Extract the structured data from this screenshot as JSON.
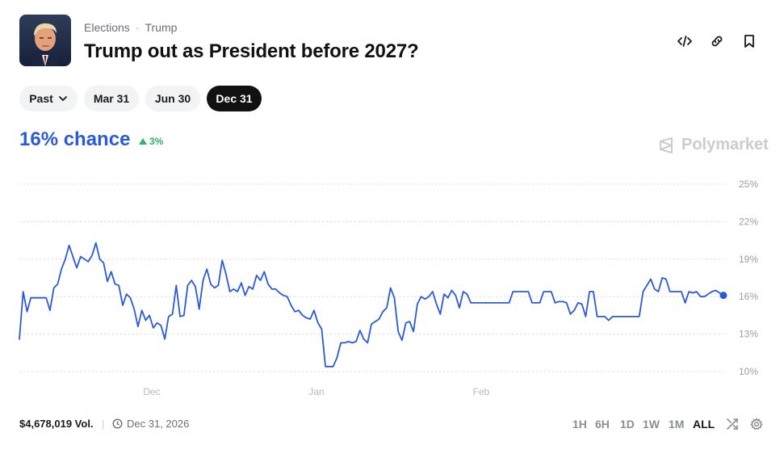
{
  "header": {
    "breadcrumb": [
      "Elections",
      "Trump"
    ],
    "breadcrumb_sep": "·",
    "title": "Trump out as President before 2027?",
    "icons": [
      "embed-code-icon",
      "link-icon",
      "bookmark-icon"
    ]
  },
  "date_filters": {
    "past_label": "Past",
    "options": [
      "Mar 31",
      "Jun 30",
      "Dec 31"
    ],
    "selected": "Dec 31"
  },
  "market": {
    "chance_label": "16% chance",
    "delta_label": "3%",
    "delta_direction": "up",
    "brand": "Polymarket"
  },
  "colors": {
    "accent": "#2b5ad9",
    "up": "#30b36a",
    "grid": "#d9dce0",
    "axis_text": "#9aa0a6"
  },
  "chart_data": {
    "type": "line",
    "title": "",
    "xlabel": "",
    "ylabel": "",
    "ylim": [
      8,
      27
    ],
    "y_ticks": [
      "25%",
      "22%",
      "19%",
      "16%",
      "13%",
      "10%"
    ],
    "x_tick_labels": [
      "Dec",
      "Jan",
      "Feb"
    ],
    "grid": true,
    "series": [
      {
        "values": [
          12.6,
          16.4,
          14.8,
          15.9,
          15.9,
          15.9,
          15.9,
          15.9,
          14.9,
          16.7,
          17.0,
          18.2,
          19.0,
          20.1,
          19.2,
          18.3,
          19.2,
          19.0,
          18.8,
          19.3,
          20.3,
          19.0,
          18.7,
          17.2,
          18.0,
          17.0,
          16.9,
          15.3,
          16.2,
          15.9,
          15.0,
          13.6,
          14.9,
          14.1,
          14.5,
          13.5,
          13.9,
          13.7,
          12.6,
          14.4,
          14.6,
          16.9,
          14.4,
          14.5,
          16.9,
          17.3,
          16.8,
          15.0,
          17.3,
          18.2,
          17.0,
          16.7,
          16.9,
          18.9,
          17.8,
          16.4,
          16.6,
          16.4,
          17.1,
          16.1,
          16.8,
          16.6,
          17.7,
          17.3,
          18.0,
          17.0,
          16.6,
          16.6,
          16.3,
          16.1,
          16.0,
          15.3,
          14.8,
          14.9,
          14.5,
          14.3,
          14.2,
          14.9,
          13.9,
          13.4,
          10.4,
          10.4,
          10.4,
          11.1,
          12.3,
          12.3,
          12.4,
          12.3,
          12.4,
          13.3,
          12.6,
          12.3,
          13.8,
          14.0,
          14.2,
          14.8,
          15.1,
          16.7,
          15.9,
          13.2,
          12.5,
          13.9,
          14.0,
          13.2,
          15.4,
          16.0,
          15.8,
          16.0,
          16.4,
          15.4,
          14.6,
          16.2,
          15.9,
          16.5,
          16.1,
          15.1,
          16.4,
          16.2,
          15.5,
          15.5,
          15.5,
          15.5,
          15.5,
          15.5,
          15.5,
          15.5,
          15.5,
          15.5,
          15.5,
          16.4,
          16.4,
          16.4,
          16.4,
          16.4,
          15.5,
          15.5,
          15.5,
          16.4,
          16.4,
          16.4,
          15.5,
          15.6,
          15.6,
          15.5,
          14.6,
          14.9,
          15.5,
          15.4,
          14.4,
          16.4,
          16.4,
          14.4,
          14.4,
          14.4,
          14.1,
          14.4,
          14.4,
          14.4,
          14.4,
          14.4,
          14.4,
          14.4,
          14.4,
          16.4,
          16.9,
          17.4,
          16.6,
          16.4,
          17.5,
          17.4,
          16.4,
          16.4,
          16.4,
          16.4,
          15.5,
          16.4,
          16.3,
          16.4,
          16.0,
          16.0,
          16.2,
          16.4,
          16.5,
          16.3,
          16.1
        ]
      }
    ],
    "current_value": 16
  },
  "footer": {
    "volume": "$4,678,019 Vol.",
    "end_date": "Dec 31, 2026",
    "ranges": [
      "1H",
      "6H",
      "1D",
      "1W",
      "1M",
      "ALL"
    ],
    "selected_range": "ALL"
  }
}
